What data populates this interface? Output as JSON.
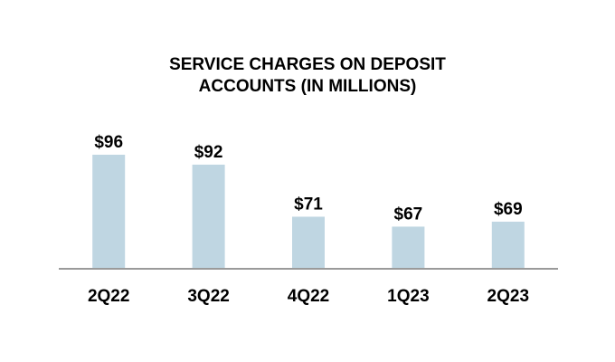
{
  "chart_data": {
    "type": "bar",
    "title_lines": [
      "SERVICE CHARGES ON DEPOSIT",
      "ACCOUNTS (IN MILLIONS)"
    ],
    "categories": [
      "2Q22",
      "3Q22",
      "4Q22",
      "1Q23",
      "2Q23"
    ],
    "values": [
      96,
      92,
      71,
      67,
      69
    ],
    "data_labels": [
      "$96",
      "$92",
      "$71",
      "$67",
      "$69"
    ],
    "xlabel": "",
    "ylabel": "",
    "ylim": [
      50,
      100
    ],
    "grid": false,
    "legend": "none",
    "bar_color": "#bfd6e2",
    "axis_color": "#9a9a9a"
  }
}
